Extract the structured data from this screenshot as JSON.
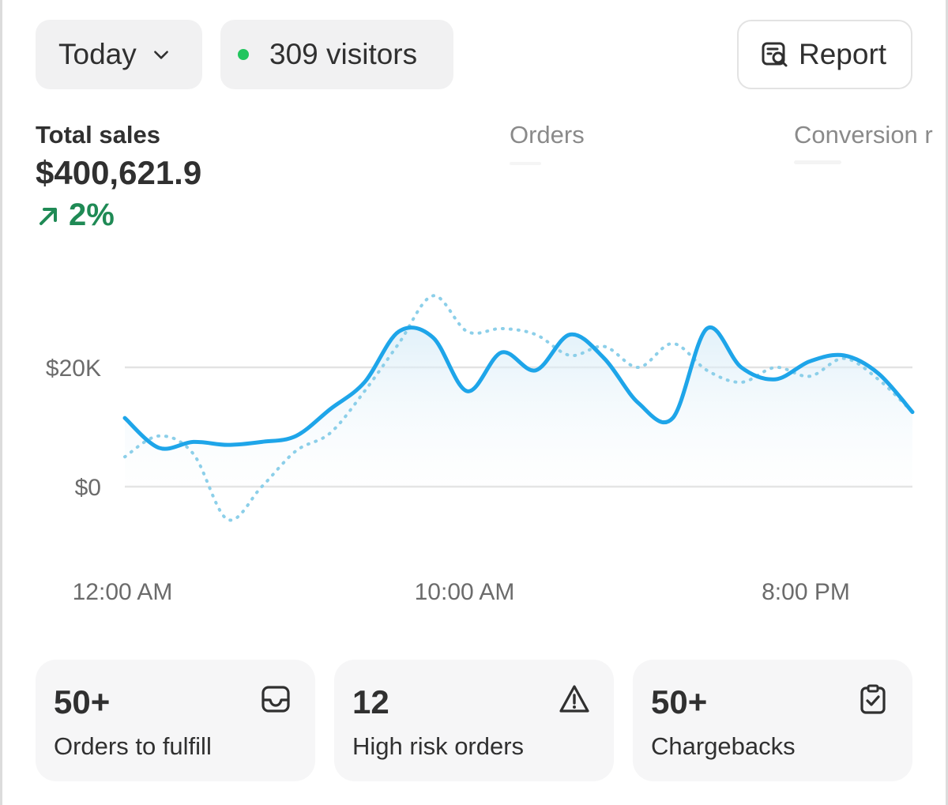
{
  "filters": {
    "period_label": "Today",
    "visitors_label": "309 visitors",
    "live_dot_color": "#22c55e",
    "period_icon": "chevron-down-icon"
  },
  "report_button": {
    "label": "Report",
    "icon": "report-search-icon"
  },
  "metrics": {
    "total_sales": {
      "title": "Total sales",
      "value": "$400,621.9",
      "change": "2%",
      "change_icon": "arrow-up-right-icon",
      "change_color": "#1f8a55"
    },
    "orders": {
      "title": "Orders"
    },
    "conversion": {
      "title": "Conversion r"
    }
  },
  "chart_data": {
    "type": "line",
    "x_tick_labels": [
      "12:00 AM",
      "10:00 AM",
      "8:00 PM"
    ],
    "y_tick_labels": [
      "$20K",
      "$0"
    ],
    "ylim": [
      -8000,
      33000
    ],
    "grid": true,
    "series": [
      {
        "style": "solid",
        "color": "#1ea5e9",
        "x": [
          0,
          1,
          2,
          3,
          4,
          5,
          6,
          7,
          8,
          9,
          10,
          11,
          12,
          13,
          14,
          15,
          16,
          17,
          18,
          19,
          20,
          21,
          22,
          23
        ],
        "values": [
          11500,
          6500,
          7500,
          7000,
          7500,
          8500,
          13000,
          17500,
          26000,
          25000,
          16000,
          22500,
          19500,
          25500,
          21500,
          14000,
          11500,
          26500,
          20000,
          18000,
          21000,
          22000,
          19000,
          12500
        ]
      },
      {
        "style": "dotted",
        "color": "#8ccfe9",
        "x": [
          0,
          1,
          2,
          3,
          4,
          5,
          6,
          7,
          8,
          9,
          10,
          11,
          12,
          13,
          14,
          15,
          16,
          17,
          18,
          19,
          20,
          21,
          22,
          23
        ],
        "values": [
          5000,
          8500,
          5500,
          -5500,
          0,
          6000,
          9000,
          16000,
          24000,
          32000,
          26000,
          26500,
          25500,
          22000,
          23500,
          20000,
          24000,
          19500,
          17500,
          20000,
          18500,
          21500,
          18000,
          12500
        ]
      }
    ]
  },
  "cards": [
    {
      "value": "50+",
      "label": "Orders to fulfill",
      "icon": "inbox-icon"
    },
    {
      "value": "12",
      "label": "High risk orders",
      "icon": "warning-triangle-icon"
    },
    {
      "value": "50+",
      "label": "Chargebacks",
      "icon": "clipboard-check-icon"
    }
  ]
}
